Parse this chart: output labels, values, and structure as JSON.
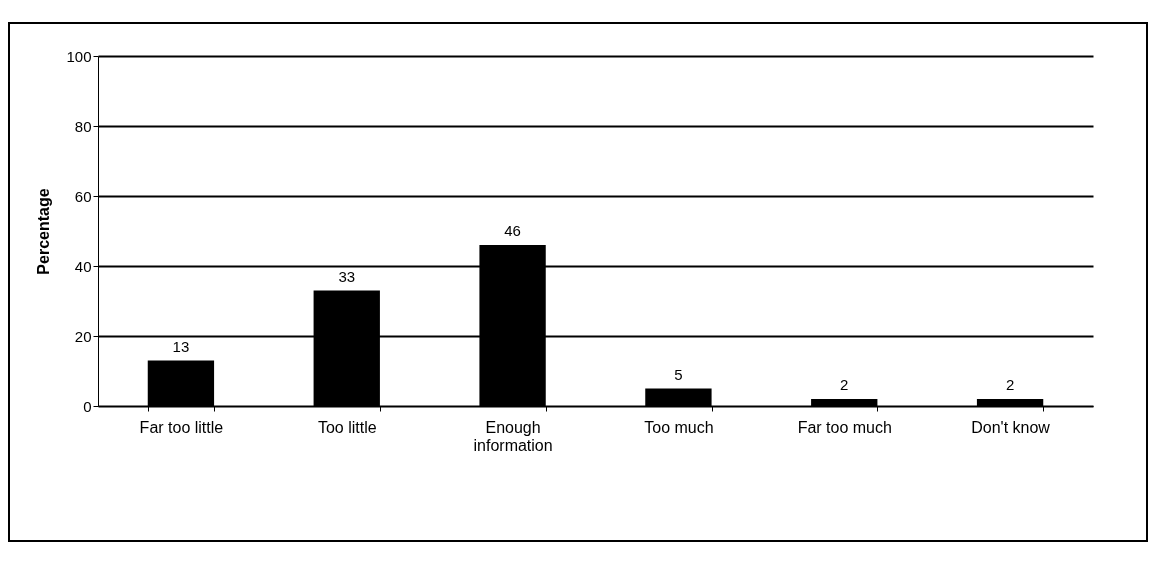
{
  "chart_data": {
    "type": "bar",
    "ylabel": "Percentage",
    "categories": [
      "Far too little",
      "Too little",
      "Enough information",
      "Too much",
      "Far too much",
      "Don't know"
    ],
    "values": [
      13,
      33,
      46,
      5,
      2,
      2
    ],
    "color": "#000000",
    "ylim": [
      0,
      100
    ],
    "yticks": [
      0,
      20,
      40,
      60,
      80,
      100
    ],
    "grid": "y",
    "data_labels": true
  }
}
